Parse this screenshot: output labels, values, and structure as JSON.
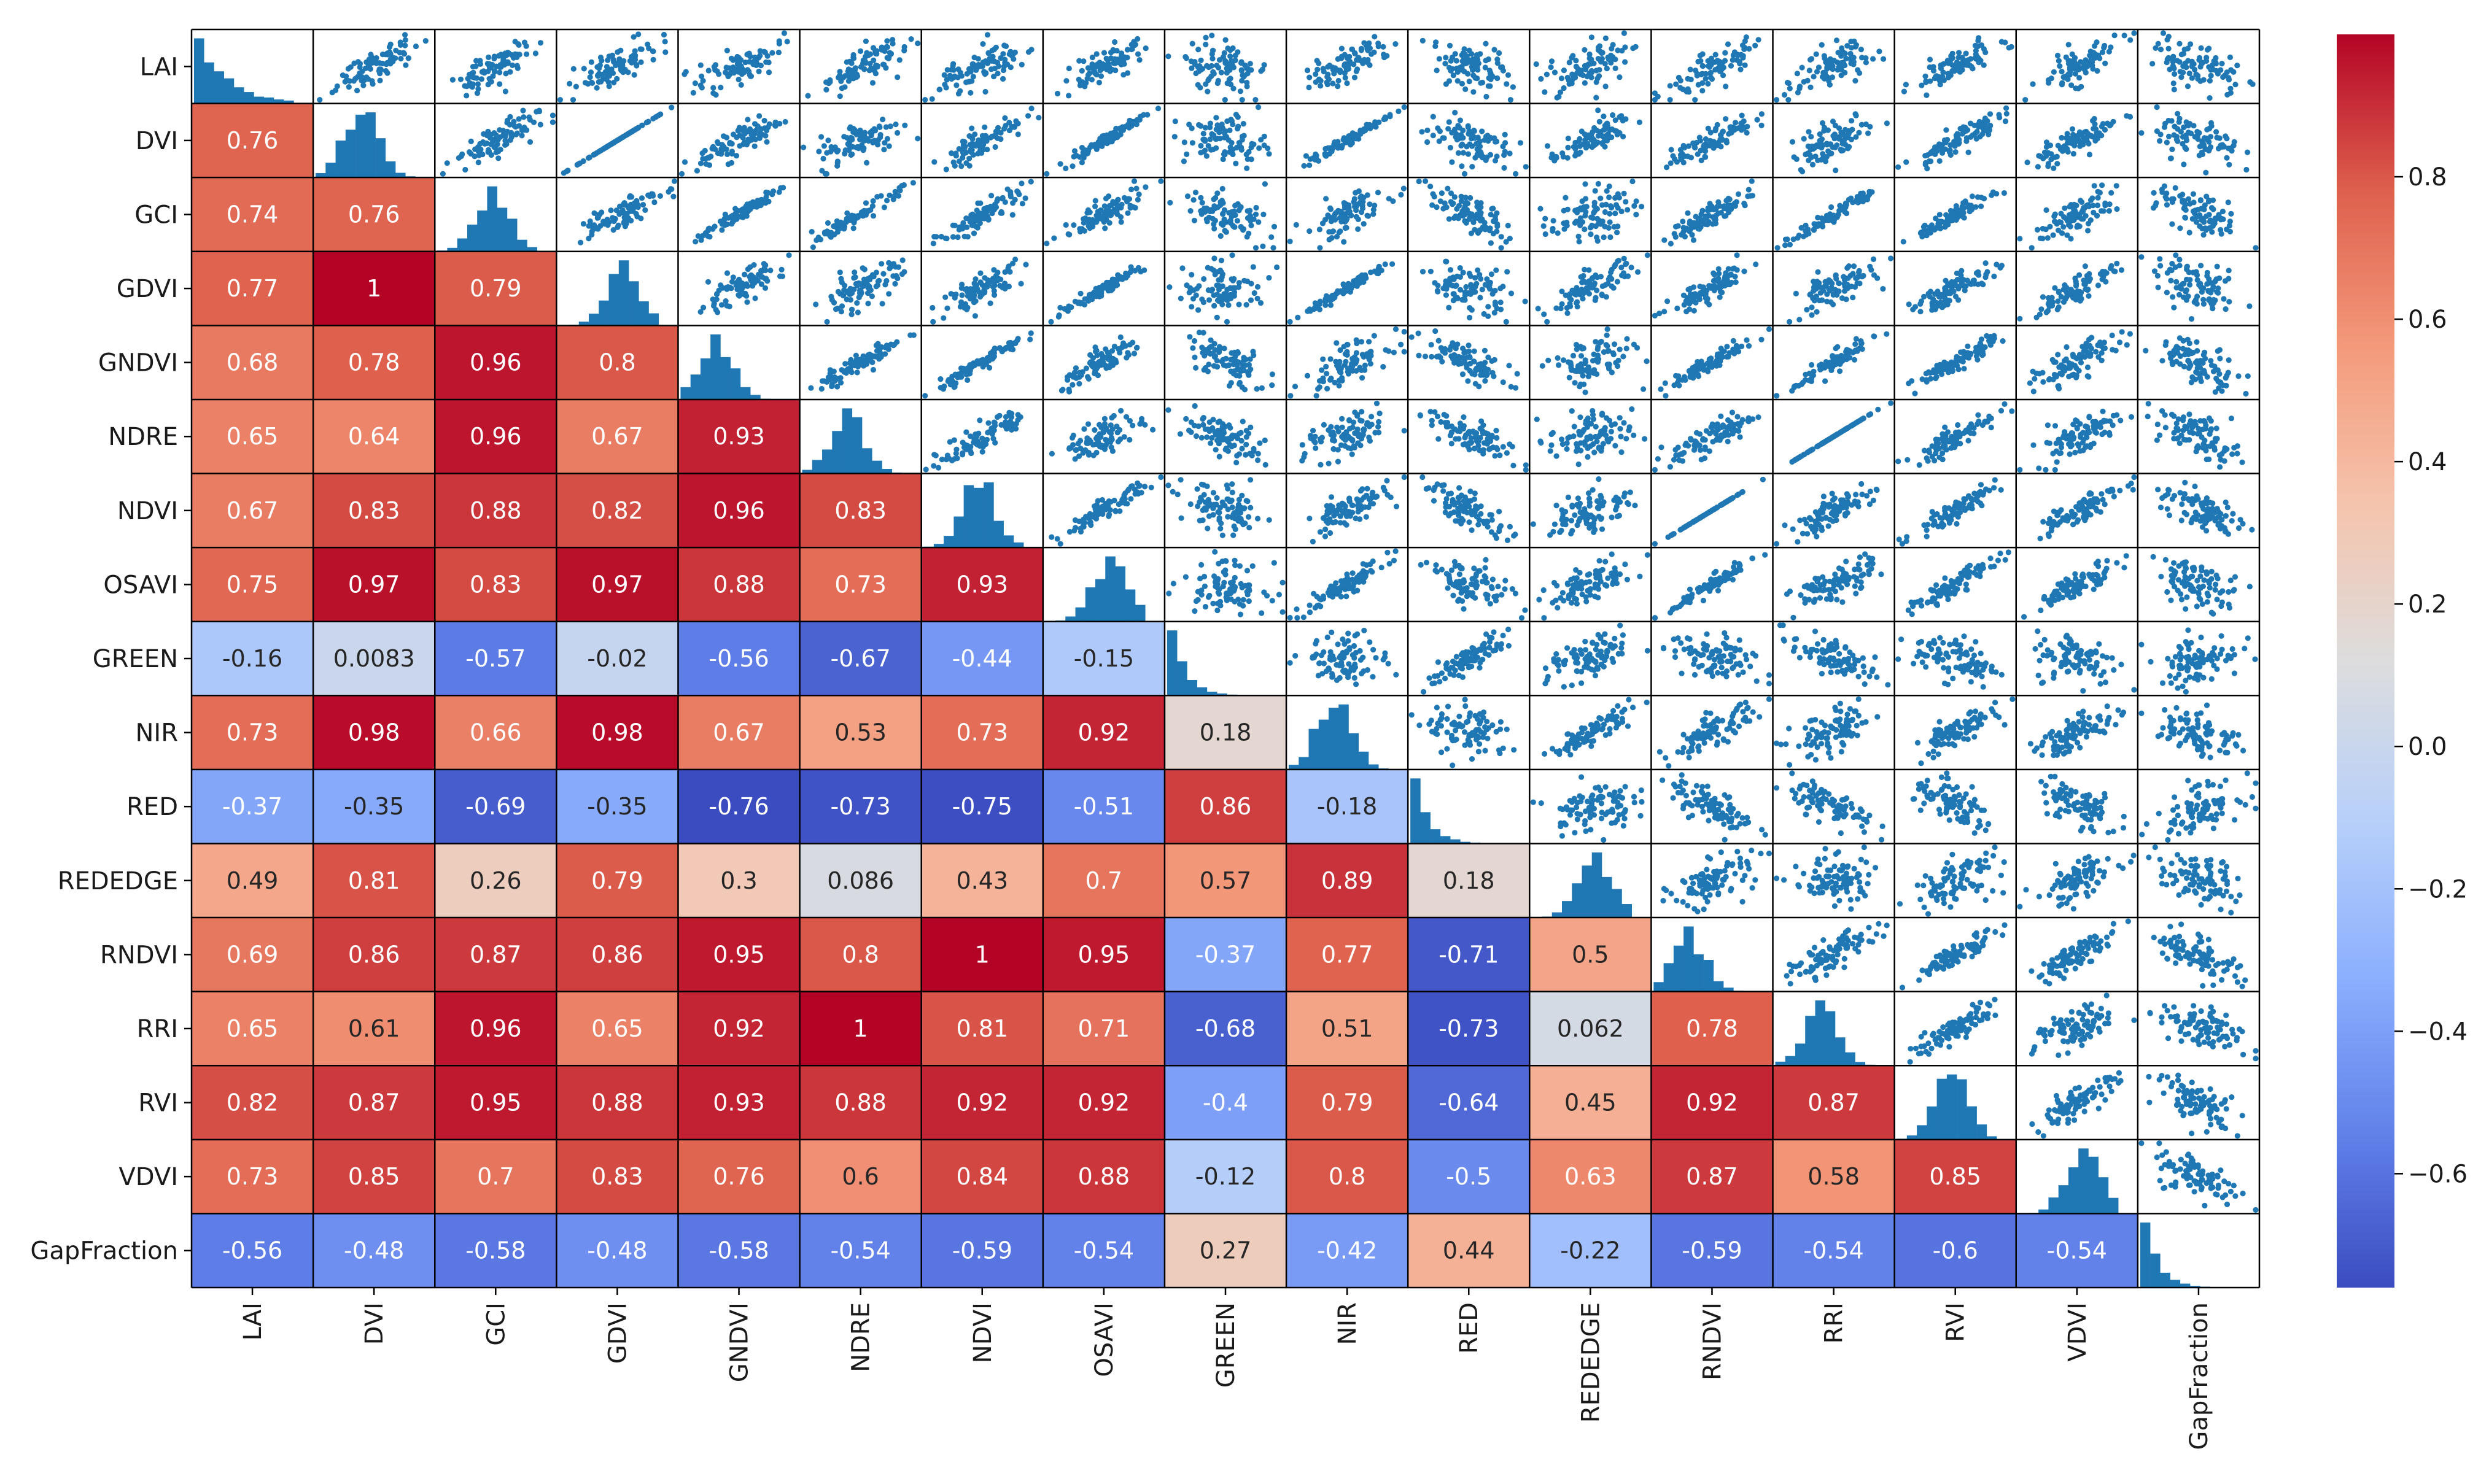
{
  "chart_data": {
    "type": "heatmap",
    "title": "",
    "description": "Pairplot correlation matrix: lower triangle shows Pearson correlation coefficients as a colored heatmap, diagonal shows histograms, upper triangle shows scatter plots.",
    "row_labels": [
      "LAI",
      "DVI",
      "GCI",
      "GDVI",
      "GNDVI",
      "NDRE",
      "NDVI",
      "OSAVI",
      "GREEN",
      "NIR",
      "RED",
      "REDEDGE",
      "RNDVI",
      "RRI",
      "RVI",
      "VDVI",
      "GapFraction"
    ],
    "col_labels": [
      "LAI",
      "DVI",
      "GCI",
      "GDVI",
      "GNDVI",
      "NDRE",
      "NDVI",
      "OSAVI",
      "GREEN",
      "NIR",
      "RED",
      "REDEDGE",
      "RNDVI",
      "RRI",
      "RVI",
      "VDVI",
      "GapFraction"
    ],
    "lower_triangle": [
      [
        "0.76"
      ],
      [
        "0.74",
        "0.76"
      ],
      [
        "0.77",
        "1",
        "0.79"
      ],
      [
        "0.68",
        "0.78",
        "0.96",
        "0.8"
      ],
      [
        "0.65",
        "0.64",
        "0.96",
        "0.67",
        "0.93"
      ],
      [
        "0.67",
        "0.83",
        "0.88",
        "0.82",
        "0.96",
        "0.83"
      ],
      [
        "0.75",
        "0.97",
        "0.83",
        "0.97",
        "0.88",
        "0.73",
        "0.93"
      ],
      [
        "-0.16",
        "0.0083",
        "-0.57",
        "-0.02",
        "-0.56",
        "-0.67",
        "-0.44",
        "-0.15"
      ],
      [
        "0.73",
        "0.98",
        "0.66",
        "0.98",
        "0.67",
        "0.53",
        "0.73",
        "0.92",
        "0.18"
      ],
      [
        "-0.37",
        "-0.35",
        "-0.69",
        "-0.35",
        "-0.76",
        "-0.73",
        "-0.75",
        "-0.51",
        "0.86",
        "-0.18"
      ],
      [
        "0.49",
        "0.81",
        "0.26",
        "0.79",
        "0.3",
        "0.086",
        "0.43",
        "0.7",
        "0.57",
        "0.89",
        "0.18"
      ],
      [
        "0.69",
        "0.86",
        "0.87",
        "0.86",
        "0.95",
        "0.8",
        "1",
        "0.95",
        "-0.37",
        "0.77",
        "-0.71",
        "0.5"
      ],
      [
        "0.65",
        "0.61",
        "0.96",
        "0.65",
        "0.92",
        "1",
        "0.81",
        "0.71",
        "-0.68",
        "0.51",
        "-0.73",
        "0.062",
        "0.78"
      ],
      [
        "0.82",
        "0.87",
        "0.95",
        "0.88",
        "0.93",
        "0.88",
        "0.92",
        "0.92",
        "-0.4",
        "0.79",
        "-0.64",
        "0.45",
        "0.92",
        "0.87"
      ],
      [
        "0.73",
        "0.85",
        "0.7",
        "0.83",
        "0.76",
        "0.6",
        "0.84",
        "0.88",
        "-0.12",
        "0.8",
        "-0.5",
        "0.63",
        "0.87",
        "0.58",
        "0.85"
      ],
      [
        "-0.56",
        "-0.48",
        "-0.58",
        "-0.48",
        "-0.58",
        "-0.54",
        "-0.59",
        "-0.54",
        "0.27",
        "-0.42",
        "0.44",
        "-0.22",
        "-0.59",
        "-0.54",
        "-0.6",
        "-0.54"
      ]
    ],
    "colorbar": {
      "cmap": "coolwarm",
      "vmin": -0.76,
      "vmax": 1.0,
      "ticks": [
        0.8,
        0.6,
        0.4,
        0.2,
        0.0,
        -0.2,
        -0.4,
        -0.6
      ],
      "tick_labels": [
        "0.8",
        "0.6",
        "0.4",
        "0.2",
        "0.0",
        "−0.2",
        "−0.4",
        "−0.6"
      ]
    },
    "scatter_color": "#1f77b4",
    "ylim": [
      -0.76,
      1.0
    ]
  }
}
